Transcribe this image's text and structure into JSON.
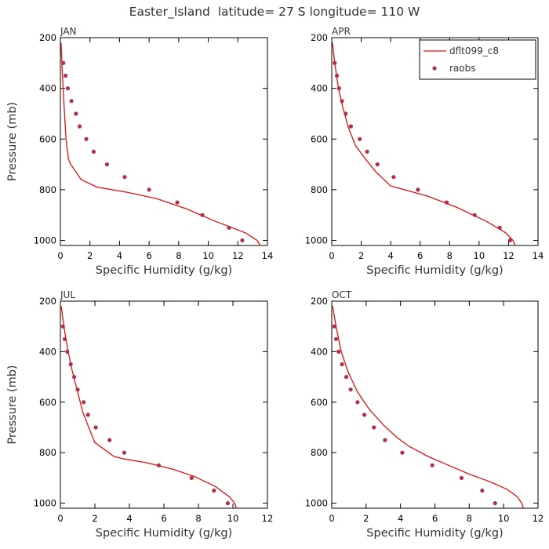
{
  "title": "Easter_Island  latitude= 27 S longitude= 110 W",
  "colors": {
    "model": "#dd1111",
    "obs": "#b03050",
    "axis": "#000000"
  },
  "legend": {
    "model_label": "dflt099_c8",
    "obs_label": "raobs",
    "panel": 1,
    "placement": "top-right"
  },
  "chart_data": [
    {
      "type": "line",
      "panel": "JAN",
      "xlabel": "Specific Humidity (g/kg)",
      "ylabel": "Pressure (mb)",
      "xlim": [
        0,
        14
      ],
      "ylim": [
        200,
        1020
      ],
      "y_inverted": true,
      "xticks": [
        0,
        2,
        4,
        6,
        8,
        10,
        12,
        14
      ],
      "yticks": [
        200,
        400,
        600,
        800,
        1000
      ],
      "series": [
        {
          "name": "dflt099_c8",
          "kind": "line",
          "x": [
            0.05,
            0.1,
            0.18,
            0.28,
            0.38,
            0.48,
            0.55,
            0.7,
            1.4,
            2.5,
            4.5,
            6.5,
            8.5,
            10.5,
            12.5,
            13.3,
            13.5
          ],
          "y": [
            220,
            300,
            400,
            500,
            600,
            650,
            680,
            700,
            760,
            790,
            810,
            835,
            875,
            925,
            970,
            1000,
            1020
          ]
        },
        {
          "name": "raobs",
          "kind": "scatter",
          "x": [
            0.2,
            0.35,
            0.5,
            0.75,
            1.05,
            1.3,
            1.75,
            2.25,
            3.15,
            4.35,
            6.0,
            7.9,
            9.6,
            11.4,
            12.3
          ],
          "y": [
            300,
            350,
            400,
            450,
            500,
            550,
            600,
            650,
            700,
            750,
            800,
            850,
            900,
            950,
            1000
          ]
        }
      ]
    },
    {
      "type": "line",
      "panel": "APR",
      "xlabel": "Specific Humidity (g/kg)",
      "ylabel": "Pressure (mb)",
      "xlim": [
        0,
        14
      ],
      "ylim": [
        200,
        1020
      ],
      "y_inverted": true,
      "xticks": [
        0,
        2,
        4,
        6,
        8,
        10,
        12,
        14
      ],
      "yticks": [
        200,
        400,
        600,
        800,
        1000
      ],
      "series": [
        {
          "name": "dflt099_c8",
          "kind": "line",
          "x": [
            0.05,
            0.2,
            0.45,
            0.75,
            1.1,
            1.6,
            2.3,
            3.0,
            4.0,
            6.5,
            8.5,
            10.5,
            11.8,
            12.3,
            12.45
          ],
          "y": [
            220,
            300,
            400,
            475,
            550,
            625,
            680,
            730,
            785,
            825,
            870,
            925,
            970,
            1000,
            1020
          ]
        },
        {
          "name": "raobs",
          "kind": "scatter",
          "x": [
            0.2,
            0.35,
            0.5,
            0.7,
            0.95,
            1.3,
            1.9,
            2.4,
            3.1,
            4.2,
            5.85,
            7.8,
            9.7,
            11.4,
            12.1
          ],
          "y": [
            300,
            350,
            400,
            450,
            500,
            550,
            600,
            650,
            700,
            750,
            800,
            850,
            900,
            950,
            1000
          ]
        }
      ]
    },
    {
      "type": "line",
      "panel": "JUL",
      "xlabel": "Specific Humidity (g/kg)",
      "ylabel": "Pressure (mb)",
      "xlim": [
        0,
        12
      ],
      "ylim": [
        200,
        1020
      ],
      "y_inverted": true,
      "xticks": [
        0,
        2,
        4,
        6,
        8,
        10,
        12
      ],
      "yticks": [
        200,
        400,
        600,
        800,
        1000
      ],
      "series": [
        {
          "name": "dflt099_c8",
          "kind": "line",
          "x": [
            0.05,
            0.2,
            0.45,
            0.7,
            1.0,
            1.3,
            1.7,
            2.0,
            2.4,
            3.1,
            3.7,
            5.0,
            6.5,
            7.8,
            9.0,
            9.8,
            10.1,
            10.2
          ],
          "y": [
            220,
            300,
            400,
            480,
            560,
            640,
            710,
            760,
            780,
            815,
            825,
            840,
            865,
            895,
            935,
            975,
            1000,
            1020
          ]
        },
        {
          "name": "raobs",
          "kind": "scatter",
          "x": [
            0.15,
            0.25,
            0.4,
            0.6,
            0.8,
            1.0,
            1.35,
            1.6,
            2.05,
            2.85,
            3.7,
            5.7,
            7.6,
            8.9,
            9.7
          ],
          "y": [
            300,
            350,
            400,
            450,
            500,
            550,
            600,
            650,
            700,
            750,
            800,
            850,
            900,
            950,
            1000
          ]
        }
      ]
    },
    {
      "type": "line",
      "panel": "OCT",
      "xlabel": "Specific Humidity (g/kg)",
      "ylabel": "Pressure (mb)",
      "xlim": [
        0,
        12
      ],
      "ylim": [
        200,
        1020
      ],
      "y_inverted": true,
      "xticks": [
        0,
        2,
        4,
        6,
        8,
        10,
        12
      ],
      "yticks": [
        200,
        400,
        600,
        800,
        1000
      ],
      "series": [
        {
          "name": "dflt099_c8",
          "kind": "line",
          "x": [
            0.05,
            0.25,
            0.55,
            0.95,
            1.5,
            2.2,
            3.0,
            3.8,
            4.5,
            5.6,
            6.8,
            8.0,
            9.2,
            10.2,
            10.8,
            11.05,
            11.15
          ],
          "y": [
            220,
            300,
            400,
            480,
            560,
            630,
            690,
            740,
            775,
            815,
            850,
            885,
            915,
            945,
            975,
            1000,
            1020
          ]
        },
        {
          "name": "raobs",
          "kind": "scatter",
          "x": [
            0.15,
            0.25,
            0.4,
            0.6,
            0.85,
            1.1,
            1.5,
            1.9,
            2.45,
            3.1,
            4.1,
            5.85,
            7.55,
            8.75,
            9.5
          ],
          "y": [
            300,
            350,
            400,
            450,
            500,
            550,
            600,
            650,
            700,
            750,
            800,
            850,
            900,
            950,
            1000
          ]
        }
      ]
    }
  ]
}
